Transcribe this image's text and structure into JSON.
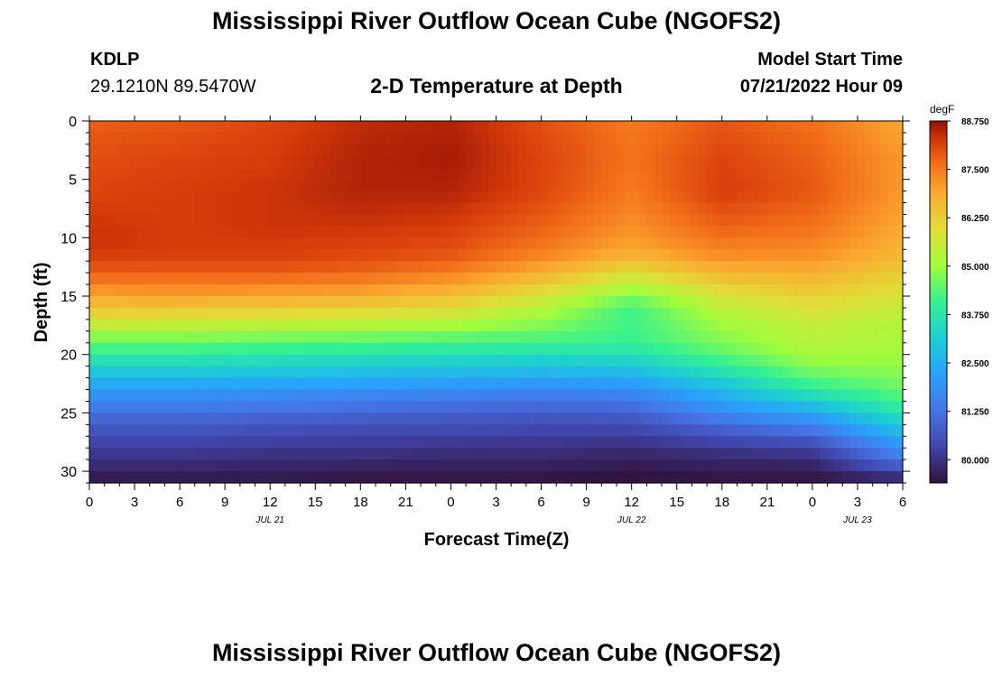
{
  "header": {
    "title": "Mississippi River Outflow Ocean Cube (NGOFS2)",
    "station_id": "KDLP",
    "station_coords": "29.1210N  89.5470W",
    "plot_title": "2-D Temperature at Depth",
    "model_start_label": "Model Start Time",
    "model_start_time": "07/21/2022 Hour 09"
  },
  "footer": {
    "title": "Mississippi River Outflow Ocean Cube (NGOFS2)"
  },
  "chart_data": {
    "type": "heatmap",
    "xlabel": "Forecast Time(Z)",
    "ylabel": "Depth (ft)",
    "x_unit": "hours",
    "x_range": [
      0,
      54
    ],
    "y_range": [
      0,
      31
    ],
    "y_inverted": true,
    "x_tick_labels": [
      "0",
      "3",
      "6",
      "9",
      "12",
      "15",
      "18",
      "21",
      "0",
      "3",
      "6",
      "9",
      "12",
      "15",
      "18",
      "21",
      "0",
      "3",
      "6"
    ],
    "y_ticks": [
      0,
      5,
      10,
      15,
      20,
      25,
      30
    ],
    "date_labels": [
      {
        "label": "JUL 21",
        "at_hour": 12
      },
      {
        "label": "JUL 22",
        "at_hour": 36
      },
      {
        "label": "JUL 23",
        "at_hour": 51
      }
    ],
    "colorbar": {
      "unit": "degF",
      "min": 79.4,
      "max": 88.75,
      "tick_labels": [
        "88.750",
        "87.500",
        "86.250",
        "85.000",
        "83.750",
        "82.500",
        "81.250",
        "80.000"
      ],
      "tick_values": [
        88.75,
        87.5,
        86.25,
        85.0,
        83.75,
        82.5,
        81.25,
        80.0
      ]
    },
    "depth_levels_ft": [
      0,
      3,
      6,
      9,
      11,
      12,
      13,
      14,
      15,
      16,
      17,
      18,
      19,
      20,
      21,
      22,
      23,
      24,
      25,
      26,
      27,
      28,
      29,
      30,
      31
    ],
    "time_hours": [
      0,
      6,
      12,
      18,
      24,
      30,
      36,
      42,
      48,
      54
    ],
    "values_degF": [
      [
        87.8,
        87.9,
        88.1,
        88.4,
        88.5,
        88.0,
        87.5,
        87.9,
        87.6,
        86.9
      ],
      [
        88.0,
        88.1,
        88.2,
        88.5,
        88.6,
        88.1,
        87.6,
        88.1,
        87.8,
        87.1
      ],
      [
        88.1,
        88.2,
        88.3,
        88.5,
        88.5,
        88.1,
        87.5,
        88.2,
        87.9,
        87.1
      ],
      [
        88.3,
        88.2,
        88.3,
        88.3,
        88.2,
        87.8,
        87.2,
        87.8,
        87.6,
        86.9
      ],
      [
        88.3,
        88.2,
        88.2,
        88.1,
        88.0,
        87.5,
        86.9,
        87.4,
        87.3,
        86.7
      ],
      [
        88.1,
        88.1,
        88.1,
        88.0,
        87.8,
        87.2,
        86.5,
        87.1,
        87.1,
        86.5
      ],
      [
        87.8,
        87.8,
        87.8,
        87.7,
        87.4,
        86.8,
        85.9,
        86.7,
        86.8,
        86.3
      ],
      [
        87.4,
        87.4,
        87.4,
        87.3,
        87.0,
        86.3,
        85.3,
        86.2,
        86.5,
        86.0
      ],
      [
        86.9,
        87.0,
        86.9,
        86.8,
        86.5,
        85.8,
        84.7,
        85.8,
        86.2,
        85.8
      ],
      [
        86.4,
        86.4,
        86.3,
        86.2,
        86.0,
        85.3,
        84.2,
        85.4,
        85.9,
        85.5
      ],
      [
        85.9,
        85.8,
        85.7,
        85.6,
        85.4,
        84.9,
        84.1,
        85.1,
        85.6,
        85.3
      ],
      [
        85.1,
        85.1,
        85.0,
        84.9,
        84.8,
        84.6,
        84.2,
        84.9,
        85.4,
        85.2
      ],
      [
        84.5,
        84.5,
        84.4,
        84.3,
        84.2,
        84.1,
        84.0,
        84.7,
        85.3,
        85.1
      ],
      [
        83.9,
        83.9,
        83.8,
        83.7,
        83.6,
        83.5,
        83.6,
        84.4,
        85.1,
        85.0
      ],
      [
        83.3,
        83.3,
        83.2,
        83.1,
        83.0,
        82.9,
        83.0,
        83.9,
        84.8,
        84.9
      ],
      [
        82.7,
        82.7,
        82.6,
        82.5,
        82.4,
        82.3,
        82.4,
        83.3,
        84.4,
        84.7
      ],
      [
        82.1,
        82.1,
        82.0,
        81.9,
        81.8,
        81.7,
        81.8,
        82.7,
        83.9,
        84.5
      ],
      [
        81.6,
        81.6,
        81.5,
        81.4,
        81.3,
        81.2,
        81.3,
        82.2,
        83.1,
        84.2
      ],
      [
        81.2,
        81.2,
        81.1,
        81.0,
        80.9,
        80.8,
        80.9,
        81.7,
        82.3,
        83.7
      ],
      [
        80.8,
        80.8,
        80.7,
        80.6,
        80.6,
        80.5,
        80.5,
        81.1,
        81.6,
        83.1
      ],
      [
        80.5,
        80.5,
        80.4,
        80.3,
        80.3,
        80.2,
        80.2,
        80.6,
        80.9,
        82.5
      ],
      [
        80.2,
        80.2,
        80.1,
        80.1,
        80.0,
        80.0,
        79.9,
        80.1,
        80.3,
        81.9
      ],
      [
        80.0,
        80.0,
        79.9,
        79.9,
        79.8,
        79.8,
        79.7,
        79.8,
        79.9,
        81.3
      ],
      [
        79.7,
        79.7,
        79.7,
        79.6,
        79.6,
        79.6,
        79.5,
        79.6,
        79.6,
        80.4
      ],
      [
        79.5,
        79.5,
        79.5,
        79.4,
        79.4,
        79.4,
        79.4,
        79.4,
        79.4,
        79.6
      ]
    ]
  }
}
